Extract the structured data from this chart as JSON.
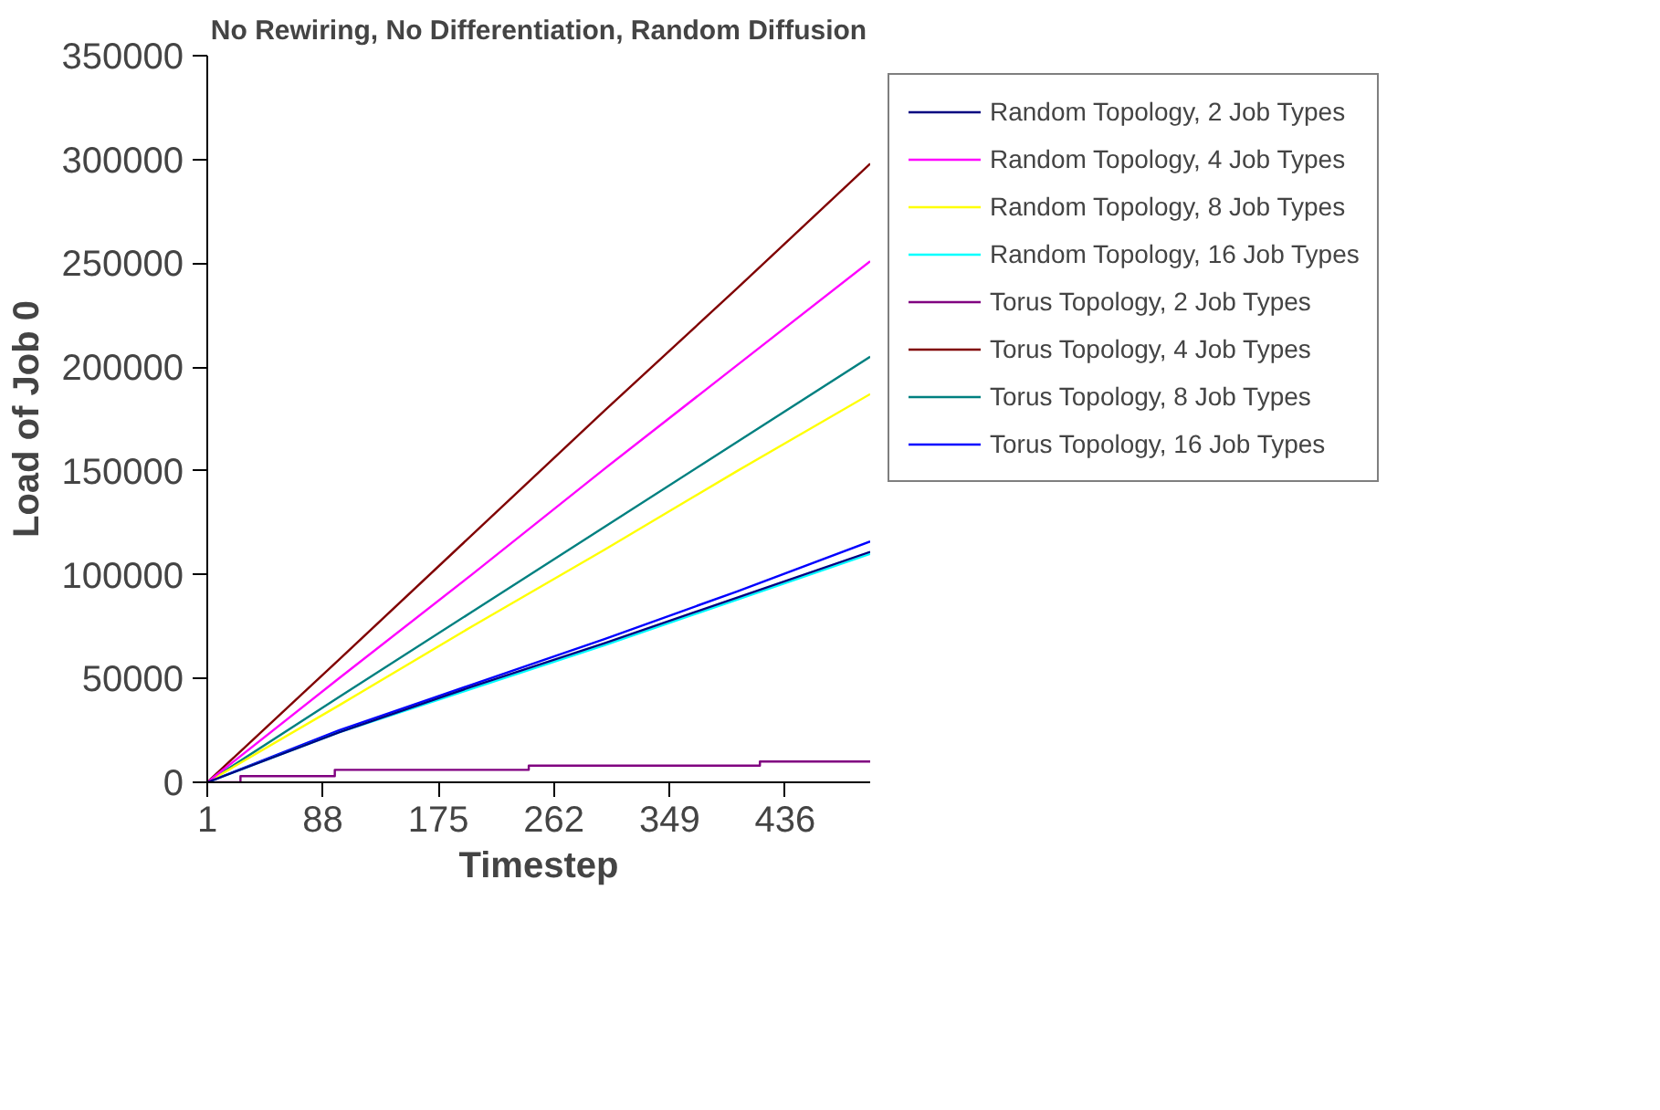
{
  "chart_data": {
    "type": "line",
    "title": "No Rewiring, No Differentiation, Random Diffusion",
    "xlabel": "Timestep",
    "ylabel": "Load of Job 0",
    "x": [
      1,
      100,
      200,
      300,
      400,
      500
    ],
    "xlim": [
      1,
      500
    ],
    "xticks": [
      1,
      88,
      175,
      262,
      349,
      436
    ],
    "ylim": [
      0,
      350000
    ],
    "yticks": [
      0,
      50000,
      100000,
      150000,
      200000,
      250000,
      300000,
      350000
    ],
    "grid": false,
    "legend": "right",
    "marker": "none",
    "line_style": "solid",
    "series": [
      {
        "name": "Random Topology, 2 Job Types",
        "color": "#000080",
        "values": [
          0,
          24000,
          46000,
          67000,
          89000,
          111000
        ]
      },
      {
        "name": "Random Topology, 4 Job Types",
        "color": "#ff00ff",
        "values": [
          0,
          50000,
          100000,
          151000,
          201000,
          251000
        ]
      },
      {
        "name": "Random Topology, 8 Job Types",
        "color": "#ffff00",
        "values": [
          0,
          37000,
          75000,
          112000,
          150000,
          187000
        ]
      },
      {
        "name": "Random Topology, 16 Job Types",
        "color": "#00ffff",
        "values": [
          0,
          24000,
          45000,
          66000,
          88000,
          110000
        ]
      },
      {
        "name": "Torus Topology, 2 Job Types",
        "color": "#800080",
        "type": "step",
        "x": [
          1,
          26,
          97,
          243,
          417,
          500
        ],
        "values": [
          0,
          3000,
          6000,
          8000,
          10000,
          10000
        ]
      },
      {
        "name": "Torus Topology, 4 Job Types",
        "color": "#800000",
        "values": [
          0,
          59000,
          119000,
          179000,
          238000,
          298000
        ]
      },
      {
        "name": "Torus Topology, 8 Job Types",
        "color": "#008080",
        "values": [
          0,
          41000,
          82000,
          123000,
          164000,
          205000
        ]
      },
      {
        "name": "Torus Topology, 16 Job Types",
        "color": "#0000ff",
        "values": [
          0,
          25000,
          47000,
          69000,
          92000,
          116000
        ]
      }
    ]
  }
}
